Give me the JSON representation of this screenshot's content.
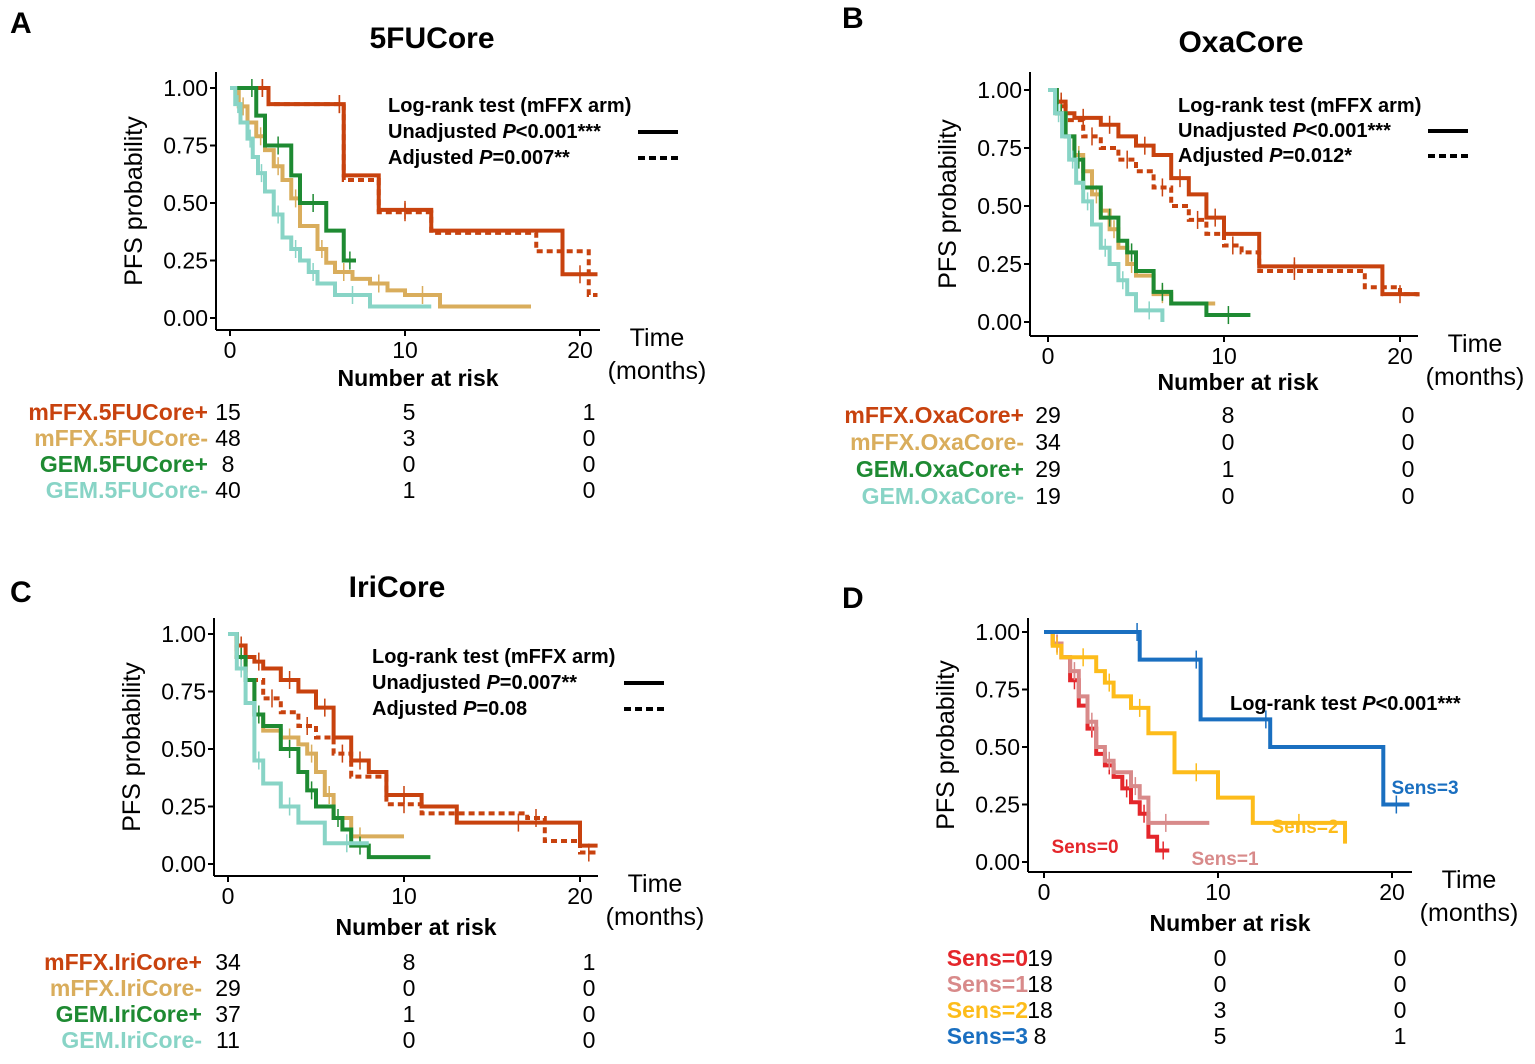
{
  "colors": {
    "mffx_pos": "#c8420e",
    "mffx_neg": "#d9ad5c",
    "gem_pos": "#1e8a32",
    "gem_neg": "#88d4c6",
    "sens0": "#e4262b",
    "sens1": "#d88a8a",
    "sens2": "#fdbc1a",
    "sens3": "#1a6fc0"
  },
  "common": {
    "ylabel": "PFS probability",
    "time_label": "Time",
    "time_unit": "(months)",
    "risk_title": "Number at risk",
    "y_ticks": [
      "1.00",
      "0.75",
      "0.50",
      "0.25",
      "0.00"
    ],
    "x_ticks": [
      "0",
      "10",
      "20"
    ]
  },
  "chart_data": [
    {
      "type": "line",
      "panel": "A",
      "title": "5FUCore",
      "xlim": [
        0,
        21
      ],
      "ylim": [
        0,
        1
      ],
      "legend": {
        "heading": "Log-rank test (mFFX  arm)",
        "rows": [
          {
            "pre": "Unadjusted ",
            "p": "P",
            "post": "<0.001***",
            "style": "solid"
          },
          {
            "pre": "Adjusted ",
            "p": "P",
            "post": "=0.007**",
            "style": "dotted"
          }
        ]
      },
      "series": [
        {
          "name": "mFFX.5FUCore+ unadjusted",
          "color_key": "mffx_pos",
          "dash": "solid",
          "x": [
            0,
            1.5,
            2.2,
            6,
            6.5,
            8.5,
            11.5,
            19,
            21
          ],
          "y": [
            1,
            1,
            0.93,
            0.93,
            0.62,
            0.47,
            0.38,
            0.19,
            0.19
          ]
        },
        {
          "name": "mFFX.5FUCore+ adjusted",
          "color_key": "mffx_pos",
          "dash": "dotted",
          "x": [
            0,
            1.5,
            2.2,
            6,
            6.5,
            8.5,
            11.5,
            17.5,
            20.5,
            21
          ],
          "y": [
            1,
            1,
            0.93,
            0.93,
            0.6,
            0.46,
            0.37,
            0.29,
            0.1,
            0.1
          ]
        },
        {
          "name": "mFFX.5FUCore-",
          "color_key": "mffx_neg",
          "dash": "solid",
          "x": [
            0,
            0.5,
            1,
            1.5,
            2,
            2.5,
            3,
            3.5,
            4,
            5,
            5.5,
            6,
            7,
            8,
            9,
            10,
            12,
            17.2
          ],
          "y": [
            1,
            0.92,
            0.85,
            0.79,
            0.73,
            0.66,
            0.6,
            0.52,
            0.4,
            0.3,
            0.24,
            0.2,
            0.17,
            0.15,
            0.12,
            0.1,
            0.05,
            0.05
          ]
        },
        {
          "name": "GEM.5FUCore+",
          "color_key": "gem_pos",
          "dash": "solid",
          "x": [
            0,
            1,
            1.5,
            2,
            3.5,
            4,
            5.5,
            6.5,
            7.2
          ],
          "y": [
            1,
            1,
            0.88,
            0.75,
            0.62,
            0.5,
            0.38,
            0.25,
            0.25
          ]
        },
        {
          "name": "GEM.5FUCore-",
          "color_key": "gem_neg",
          "dash": "solid",
          "x": [
            0,
            0.3,
            0.6,
            1,
            1.3,
            1.6,
            2,
            2.5,
            3,
            3.5,
            4,
            4.5,
            5,
            6,
            8,
            11.5
          ],
          "y": [
            1,
            0.93,
            0.85,
            0.78,
            0.7,
            0.63,
            0.55,
            0.45,
            0.35,
            0.3,
            0.25,
            0.2,
            0.15,
            0.1,
            0.05,
            0.05
          ]
        }
      ],
      "risk": {
        "rows": [
          {
            "label": "mFFX.5FUCore+",
            "color_key": "mffx_pos",
            "values": [
              "15",
              "5",
              "1"
            ]
          },
          {
            "label": "mFFX.5FUCore-",
            "color_key": "mffx_neg",
            "values": [
              "48",
              "3",
              "0"
            ]
          },
          {
            "label": "GEM.5FUCore+",
            "color_key": "gem_pos",
            "values": [
              "8",
              "0",
              "0"
            ]
          },
          {
            "label": "GEM.5FUCore-",
            "color_key": "gem_neg",
            "values": [
              "40",
              "1",
              "0"
            ]
          }
        ]
      }
    },
    {
      "type": "line",
      "panel": "B",
      "title": "OxaCore",
      "xlim": [
        0,
        21
      ],
      "ylim": [
        0,
        1
      ],
      "legend": {
        "heading": "Log-rank test (mFFX  arm)",
        "rows": [
          {
            "pre": "Unadjusted ",
            "p": "P",
            "post": "<0.001***",
            "style": "solid"
          },
          {
            "pre": "Adjusted ",
            "p": "P",
            "post": "=0.012*",
            "style": "dotted"
          }
        ]
      },
      "series": [
        {
          "name": "mFFX.OxaCore+ unadjusted",
          "color_key": "mffx_pos",
          "dash": "solid",
          "x": [
            0,
            0.5,
            1,
            1.5,
            2.5,
            3,
            4,
            5,
            6,
            7,
            8,
            9,
            10,
            12,
            16,
            19,
            21
          ],
          "y": [
            1,
            0.95,
            0.9,
            0.88,
            0.88,
            0.85,
            0.8,
            0.76,
            0.72,
            0.62,
            0.55,
            0.45,
            0.38,
            0.24,
            0.24,
            0.12,
            0.12
          ]
        },
        {
          "name": "mFFX.OxaCore+ adjusted",
          "color_key": "mffx_pos",
          "dash": "dotted",
          "x": [
            0,
            0.5,
            1,
            2,
            3,
            4,
            5,
            6,
            7,
            8,
            9,
            10,
            11,
            12,
            16,
            18,
            20,
            21
          ],
          "y": [
            1,
            0.93,
            0.87,
            0.8,
            0.75,
            0.7,
            0.65,
            0.58,
            0.5,
            0.44,
            0.38,
            0.33,
            0.3,
            0.22,
            0.22,
            0.15,
            0.12,
            0.1
          ]
        },
        {
          "name": "mFFX.OxaCore-",
          "color_key": "mffx_neg",
          "dash": "solid",
          "x": [
            0,
            0.5,
            1,
            1.5,
            2,
            2.5,
            3,
            3.5,
            4,
            4.5,
            5,
            6,
            7,
            9.5
          ],
          "y": [
            1,
            0.9,
            0.8,
            0.72,
            0.65,
            0.55,
            0.48,
            0.4,
            0.32,
            0.25,
            0.2,
            0.12,
            0.08,
            0.08
          ]
        },
        {
          "name": "GEM.OxaCore+",
          "color_key": "gem_pos",
          "dash": "solid",
          "x": [
            0,
            0.5,
            1,
            1.5,
            2,
            3,
            4,
            4.5,
            5,
            6,
            7,
            9,
            11.5
          ],
          "y": [
            1,
            0.9,
            0.8,
            0.7,
            0.58,
            0.45,
            0.35,
            0.3,
            0.22,
            0.13,
            0.08,
            0.03,
            0.03
          ]
        },
        {
          "name": "GEM.OxaCore-",
          "color_key": "gem_neg",
          "dash": "solid",
          "x": [
            0,
            0.4,
            0.8,
            1.2,
            1.6,
            2,
            2.5,
            3,
            3.5,
            4,
            4.5,
            5,
            6.5
          ],
          "y": [
            1,
            0.9,
            0.8,
            0.7,
            0.6,
            0.52,
            0.42,
            0.32,
            0.25,
            0.18,
            0.12,
            0.05,
            0
          ]
        }
      ],
      "risk": {
        "rows": [
          {
            "label": "mFFX.OxaCore+",
            "color_key": "mffx_pos",
            "values": [
              "29",
              "8",
              "0"
            ]
          },
          {
            "label": "mFFX.OxaCore-",
            "color_key": "mffx_neg",
            "values": [
              "34",
              "0",
              "0"
            ]
          },
          {
            "label": "GEM.OxaCore+",
            "color_key": "gem_pos",
            "values": [
              "29",
              "1",
              "0"
            ]
          },
          {
            "label": "GEM.OxaCore-",
            "color_key": "gem_neg",
            "values": [
              "19",
              "0",
              "0"
            ]
          }
        ]
      }
    },
    {
      "type": "line",
      "panel": "C",
      "title": "IriCore",
      "xlim": [
        0,
        21
      ],
      "ylim": [
        0,
        1
      ],
      "legend": {
        "heading": "Log-rank test (mFFX  arm)",
        "rows": [
          {
            "pre": "Unadjusted ",
            "p": "P",
            "post": "=0.007**",
            "style": "solid"
          },
          {
            "pre": "Adjusted ",
            "p": "P",
            "post": "=0.08",
            "style": "dotted"
          }
        ]
      },
      "series": [
        {
          "name": "mFFX.IriCore+ unadjusted",
          "color_key": "mffx_pos",
          "dash": "solid",
          "x": [
            0,
            0.5,
            1,
            1.5,
            2,
            3,
            4,
            5,
            6,
            7,
            8,
            9,
            11,
            13,
            20,
            21
          ],
          "y": [
            1,
            0.95,
            0.9,
            0.88,
            0.85,
            0.8,
            0.75,
            0.68,
            0.55,
            0.45,
            0.4,
            0.3,
            0.25,
            0.18,
            0.08,
            0.08
          ]
        },
        {
          "name": "mFFX.IriCore+ adjusted",
          "color_key": "mffx_pos",
          "dash": "dotted",
          "x": [
            0,
            0.5,
            1,
            2,
            3,
            4,
            5,
            6,
            7,
            9,
            11,
            17,
            18,
            20,
            21
          ],
          "y": [
            1,
            0.9,
            0.8,
            0.72,
            0.66,
            0.6,
            0.55,
            0.48,
            0.38,
            0.26,
            0.22,
            0.2,
            0.1,
            0.05,
            0.05
          ]
        },
        {
          "name": "mFFX.IriCore-",
          "color_key": "mffx_neg",
          "dash": "solid",
          "x": [
            0,
            0.5,
            1,
            1.5,
            2,
            3,
            4,
            4.5,
            5,
            5.5,
            6,
            7,
            8,
            10
          ],
          "y": [
            1,
            0.9,
            0.8,
            0.65,
            0.58,
            0.55,
            0.52,
            0.48,
            0.4,
            0.3,
            0.2,
            0.12,
            0.12,
            0.12
          ]
        },
        {
          "name": "GEM.IriCore+",
          "color_key": "gem_pos",
          "dash": "solid",
          "x": [
            0,
            0.5,
            1,
            1.5,
            2,
            3,
            4,
            4.5,
            5,
            6,
            6.5,
            7,
            8,
            11.5
          ],
          "y": [
            1,
            0.9,
            0.8,
            0.65,
            0.6,
            0.5,
            0.4,
            0.32,
            0.25,
            0.2,
            0.15,
            0.08,
            0.03,
            0.03
          ]
        },
        {
          "name": "GEM.IriCore-",
          "color_key": "gem_neg",
          "dash": "solid",
          "x": [
            0,
            0.5,
            1,
            1.5,
            2,
            3,
            4,
            5.5,
            8
          ],
          "y": [
            1,
            0.85,
            0.7,
            0.45,
            0.35,
            0.25,
            0.18,
            0.09,
            0.09
          ]
        }
      ],
      "risk": {
        "rows": [
          {
            "label": "mFFX.IriCore+",
            "color_key": "mffx_pos",
            "values": [
              "34",
              "8",
              "1"
            ]
          },
          {
            "label": "mFFX.IriCore-",
            "color_key": "mffx_neg",
            "values": [
              "29",
              "0",
              "0"
            ]
          },
          {
            "label": "GEM.IriCore+",
            "color_key": "gem_pos",
            "values": [
              "37",
              "1",
              "0"
            ]
          },
          {
            "label": "GEM.IriCore-",
            "color_key": "gem_neg",
            "values": [
              "11",
              "0",
              "0"
            ]
          }
        ]
      }
    },
    {
      "type": "line",
      "panel": "D",
      "title": "",
      "xlim": [
        0,
        21
      ],
      "ylim": [
        0,
        1
      ],
      "legend": {
        "heading": "Log-rank test ",
        "p": "P",
        "post": "<0.001***"
      },
      "series": [
        {
          "name": "Sens=0",
          "color_key": "sens0",
          "dash": "solid",
          "x": [
            0,
            0.5,
            1,
            1.5,
            2,
            2.5,
            3,
            3.5,
            4,
            4.5,
            5,
            5.5,
            6,
            6.5,
            7.2
          ],
          "y": [
            1,
            0.95,
            0.89,
            0.79,
            0.68,
            0.58,
            0.47,
            0.42,
            0.37,
            0.32,
            0.26,
            0.21,
            0.11,
            0.05,
            0.05
          ]
        },
        {
          "name": "Sens=1",
          "color_key": "sens1",
          "dash": "solid",
          "x": [
            0,
            0.5,
            1,
            1.5,
            2,
            2.5,
            3,
            3.5,
            4,
            5,
            5.5,
            6,
            8,
            9.5
          ],
          "y": [
            1,
            0.95,
            0.89,
            0.83,
            0.72,
            0.61,
            0.5,
            0.44,
            0.39,
            0.33,
            0.28,
            0.17,
            0.17,
            0.17
          ]
        },
        {
          "name": "Sens=2",
          "color_key": "sens2",
          "dash": "solid",
          "x": [
            0,
            0.5,
            1,
            1.5,
            3,
            3.5,
            4,
            5,
            6,
            7.5,
            10,
            12,
            17.3
          ],
          "y": [
            1,
            0.94,
            0.89,
            0.89,
            0.83,
            0.78,
            0.72,
            0.67,
            0.56,
            0.39,
            0.28,
            0.17,
            0.08
          ]
        },
        {
          "name": "Sens=3",
          "color_key": "sens3",
          "dash": "solid",
          "x": [
            0,
            5.2,
            5.5,
            8.5,
            9,
            12.5,
            13,
            19.5,
            21
          ],
          "y": [
            1,
            1,
            0.88,
            0.88,
            0.62,
            0.62,
            0.5,
            0.25,
            0.25
          ]
        }
      ],
      "curve_labels": [
        "Sens=0",
        "Sens=1",
        "Sens=2",
        "Sens=3"
      ],
      "risk": {
        "rows": [
          {
            "label": "Sens=0",
            "color_key": "sens0",
            "values": [
              "19",
              "0",
              "0"
            ]
          },
          {
            "label": "Sens=1",
            "color_key": "sens1",
            "values": [
              "18",
              "0",
              "0"
            ]
          },
          {
            "label": "Sens=2",
            "color_key": "sens2",
            "values": [
              "18",
              "3",
              "0"
            ]
          },
          {
            "label": "Sens=3",
            "color_key": "sens3",
            "values": [
              "8",
              "5",
              "1"
            ]
          }
        ]
      }
    }
  ]
}
